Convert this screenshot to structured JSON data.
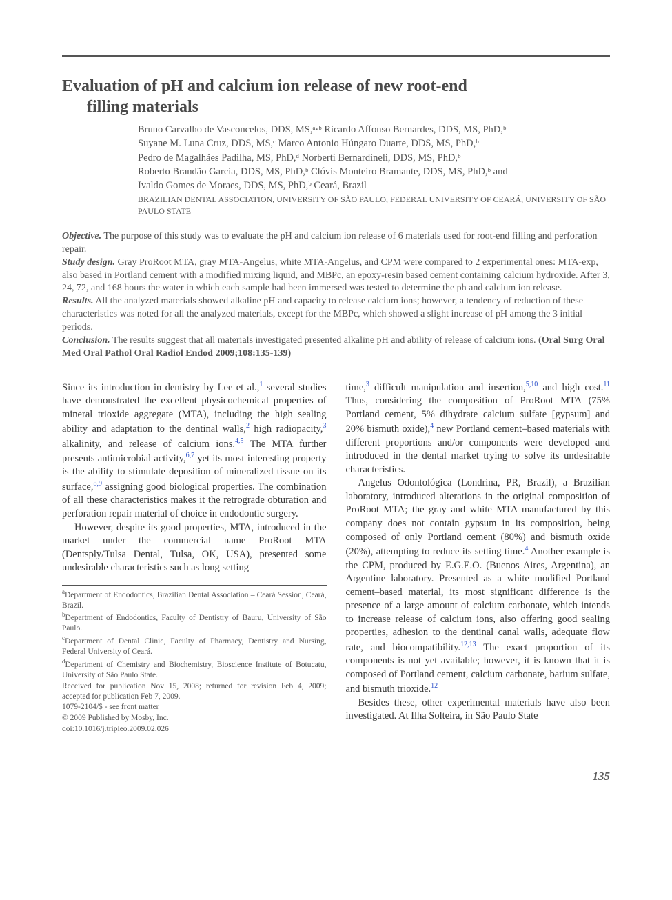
{
  "title_line1": "Evaluation of pH and calcium ion release of new root-end",
  "title_line2": "filling materials",
  "authors_lines": [
    "Bruno Carvalho de Vasconcelos, DDS, MS,ᵃ·ᵇ Ricardo Affonso Bernardes, DDS, MS, PhD,ᵇ",
    "Suyane M. Luna Cruz, DDS, MS,ᶜ Marco Antonio Húngaro Duarte, DDS, MS, PhD,ᵇ",
    "Pedro de Magalhães Padilha, MS, PhD,ᵈ Norberti Bernardineli, DDS, MS, PhD,ᵇ",
    "Roberto Brandão Garcia, DDS, MS, PhD,ᵇ Clóvis Monteiro Bramante, DDS, MS, PhD,ᵇ and",
    "Ivaldo Gomes de Moraes, DDS, MS, PhD,ᵇ Ceará, Brazil"
  ],
  "affil_caps": "BRAZILIAN DENTAL ASSOCIATION, UNIVERSITY OF SÃO PAULO, FEDERAL UNIVERSITY OF CEARÁ, UNIVERSITY OF SÃO PAULO STATE",
  "abstract": {
    "objective_label": "Objective.",
    "objective": " The purpose of this study was to evaluate the pH and calcium ion release of 6 materials used for root-end filling and perforation repair.",
    "design_label": "Study design.",
    "design": " Gray ProRoot MTA, gray MTA-Angelus, white MTA-Angelus, and CPM were compared to 2 experimental ones: MTA-exp, also based in Portland cement with a modified mixing liquid, and MBPc, an epoxy-resin based cement containing calcium hydroxide. After 3, 24, 72, and 168 hours the water in which each sample had been immersed was tested to determine the ph and calcium ion release.",
    "results_label": "Results.",
    "results": " All the analyzed materials showed alkaline pH and capacity to release calcium ions; however, a tendency of reduction of these characteristics was noted for all the analyzed materials, except for the MBPc, which showed a slight increase of pH among the 3 initial periods.",
    "conclusion_label": "Conclusion.",
    "conclusion": " The results suggest that all materials investigated presented alkaline pH and ability of release of calcium ions. ",
    "citation": "(Oral Surg Oral Med Oral Pathol Oral Radiol Endod 2009;108:135-139)"
  },
  "body": {
    "left_p1_a": "Since its introduction in dentistry by Lee et al.,",
    "left_p1_b": " several studies have demonstrated the excellent physicochemical properties of mineral trioxide aggregate (MTA), including the high sealing ability and adaptation to the dentinal walls,",
    "left_p1_c": " high radiopacity,",
    "left_p1_d": " alkalinity, and release of calcium ions.",
    "left_p1_e": " The MTA further presents antimicrobial activity,",
    "left_p1_f": " yet its most interesting property is the ability to stimulate deposition of mineralized tissue on its surface,",
    "left_p1_g": " assigning good biological properties. The combination of all these characteristics makes it the retrograde obturation and perforation repair material of choice in endodontic surgery.",
    "left_p2": "However, despite its good properties, MTA, introduced in the market under the commercial name ProRoot MTA (Dentsply/Tulsa Dental, Tulsa, OK, USA), presented some undesirable characteristics such as long setting",
    "right_p1_a": "time,",
    "right_p1_b": " difficult manipulation and insertion,",
    "right_p1_c": " and high cost.",
    "right_p1_d": " Thus, considering the composition of ProRoot MTA (75% Portland cement, 5% dihydrate calcium sulfate [gypsum] and 20% bismuth oxide),",
    "right_p1_e": " new Portland cement–based materials with different proportions and/or components were developed and introduced in the dental market trying to solve its undesirable characteristics.",
    "right_p2_a": "Angelus Odontológica (Londrina, PR, Brazil), a Brazilian laboratory, introduced alterations in the original composition of ProRoot MTA; the gray and white MTA manufactured by this company does not contain gypsum in its composition, being composed of only Portland cement (80%) and bismuth oxide (20%), attempting to reduce its setting time.",
    "right_p2_b": " Another example is the CPM, produced by E.G.E.O. (Buenos Aires, Argentina), an Argentine laboratory. Presented as a white modified Portland cement–based material, its most significant difference is the presence of a large amount of calcium carbonate, which intends to increase release of calcium ions, also offering good sealing properties, adhesion to the dentinal canal walls, adequate flow rate, and biocompatibility.",
    "right_p2_c": " The exact proportion of its components is not yet available; however, it is known that it is composed of Portland cement, calcium carbonate, barium sulfate, and bismuth trioxide.",
    "right_p3": "Besides these, other experimental materials have also been investigated. At Ilha Solteira, in São Paulo State"
  },
  "refs": {
    "r1": "1",
    "r2": "2",
    "r3": "3",
    "r45": "4,5",
    "r67": "6,7",
    "r89": "8,9",
    "r510": "5,10",
    "r11": "11",
    "r4": "4",
    "r1213": "12,13",
    "r12": "12"
  },
  "footnotes": [
    {
      "mark": "a",
      "text": "Department of Endodontics, Brazilian Dental Association – Ceará Session, Ceará, Brazil."
    },
    {
      "mark": "b",
      "text": "Department of Endodontics, Faculty of Dentistry of Bauru, University of São Paulo."
    },
    {
      "mark": "c",
      "text": "Department of Dental Clinic, Faculty of Pharmacy, Dentistry and Nursing, Federal University of Ceará."
    },
    {
      "mark": "d",
      "text": "Department of Chemistry and Biochemistry, Bioscience Institute of Botucatu, University of São Paulo State."
    }
  ],
  "pubinfo": [
    "Received for publication Nov 15, 2008; returned for revision Feb 4, 2009; accepted for publication Feb 7, 2009.",
    "1079-2104/$ - see front matter",
    "© 2009 Published by Mosby, Inc.",
    "doi:10.1016/j.tripleo.2009.02.026"
  ],
  "page_number": "135",
  "colors": {
    "text": "#333333",
    "muted": "#555555",
    "link": "#2a4fc9",
    "rule": "#555555",
    "background": "#ffffff"
  },
  "typography": {
    "title_fontsize": 24,
    "body_fontsize": 14.5,
    "abstract_fontsize": 14,
    "footnote_fontsize": 11.5,
    "font_family": "Times New Roman"
  }
}
